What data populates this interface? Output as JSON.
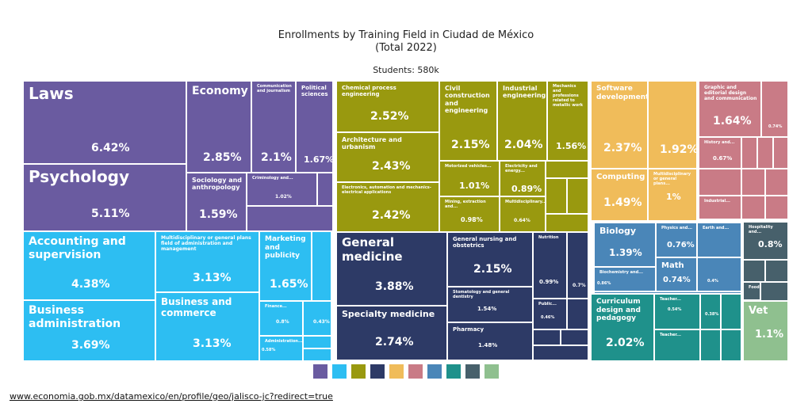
{
  "chart_data": {
    "type": "treemap",
    "title_line1": "Enrollments by Training Field in Ciudad de México",
    "title_line2": "(Total 2022)",
    "subtitle": "Students: 580k",
    "groups": [
      {
        "name": "",
        "color": "#6a5ba0",
        "children": [
          {
            "label": "Laws",
            "value": "6.42%"
          },
          {
            "label": "Psychology",
            "value": "5.11%"
          },
          {
            "label": "Economy",
            "value": "2.85%"
          },
          {
            "label": "Communication and journalism",
            "value": "2.1%"
          },
          {
            "label": "Political sciences",
            "value": "1.67%"
          },
          {
            "label": "Sociology and anthropology",
            "value": "1.59%"
          },
          {
            "label": "Criminology and...",
            "value": "1.02%"
          }
        ]
      },
      {
        "name": "",
        "color": "#2dbef2",
        "children": [
          {
            "label": "Accounting and supervision",
            "value": "4.38%"
          },
          {
            "label": "Business administration",
            "value": "3.69%"
          },
          {
            "label": "Multidisciplinary or general plans field of administration and management",
            "value": "3.13%"
          },
          {
            "label": "Business and commerce",
            "value": "3.13%"
          },
          {
            "label": "Marketing and publicity",
            "value": "1.65%"
          },
          {
            "label": "Finance...",
            "value": "0.8%"
          },
          {
            "label": "",
            "value": "0.43%"
          },
          {
            "label": "Administration...",
            "value": "0.58%"
          }
        ]
      },
      {
        "name": "",
        "color": "#99990f",
        "children": [
          {
            "label": "Chemical process engineering",
            "value": "2.52%"
          },
          {
            "label": "Architecture and urbanism",
            "value": "2.43%"
          },
          {
            "label": "Electronics, automation and mechanics-electrical applications",
            "value": "2.42%"
          },
          {
            "label": "Civil construction and engineering",
            "value": "2.15%"
          },
          {
            "label": "Industrial engineering",
            "value": "2.04%"
          },
          {
            "label": "Mechanics and professions related to metallic work",
            "value": "1.56%"
          },
          {
            "label": "Motorized vehicles...",
            "value": "1.01%"
          },
          {
            "label": "Electricity and energy...",
            "value": "0.89%"
          },
          {
            "label": "Mining, extraction and...",
            "value": "0.98%"
          },
          {
            "label": "Multidisciplinary...",
            "value": "0.64%"
          }
        ]
      },
      {
        "name": "",
        "color": "#2d3a66",
        "children": [
          {
            "label": "General medicine",
            "value": "3.88%"
          },
          {
            "label": "Specialty medicine",
            "value": "2.74%"
          },
          {
            "label": "General nursing and obstetrics",
            "value": "2.15%"
          },
          {
            "label": "Stomatology and general dentistry",
            "value": "1.54%"
          },
          {
            "label": "Pharmacy",
            "value": "1.48%"
          },
          {
            "label": "Nutrition",
            "value": "0.99%"
          },
          {
            "label": "",
            "value": "0.7%"
          },
          {
            "label": "Public...",
            "value": "0.46%"
          }
        ]
      },
      {
        "name": "",
        "color": "#f0bc5a",
        "children": [
          {
            "label": "Software development",
            "value": "2.37%"
          },
          {
            "label": "",
            "value": "1.92%"
          },
          {
            "label": "Computing",
            "value": "1.49%"
          },
          {
            "label": "Multidisciplinary or general plans...",
            "value": "1%"
          }
        ]
      },
      {
        "name": "",
        "color": "#c97b86",
        "children": [
          {
            "label": "Graphic and editorial design and communication",
            "value": "1.64%"
          },
          {
            "label": "",
            "value": "0.74%"
          },
          {
            "label": "History and...",
            "value": "0.67%"
          },
          {
            "label": "Industrial...",
            "value": ""
          }
        ]
      },
      {
        "name": "",
        "color": "#4a86b8",
        "children": [
          {
            "label": "Biology",
            "value": "1.39%"
          },
          {
            "label": "Physics and...",
            "value": "0.76%"
          },
          {
            "label": "Earth and...",
            "value": ""
          },
          {
            "label": "Biochemistry and...",
            "value": "0.86%"
          },
          {
            "label": "Math",
            "value": "0.74%"
          },
          {
            "label": "",
            "value": "0.4%"
          }
        ]
      },
      {
        "name": "",
        "color": "#1f918b",
        "children": [
          {
            "label": "Curriculum design and pedagogy",
            "value": "2.02%"
          },
          {
            "label": "Teacher...",
            "value": "0.54%"
          },
          {
            "label": "",
            "value": "0.38%"
          },
          {
            "label": "Teacher...",
            "value": ""
          }
        ]
      },
      {
        "name": "",
        "color": "#47606b",
        "children": [
          {
            "label": "Hospitality and...",
            "value": "0.8%"
          },
          {
            "label": "Food...",
            "value": ""
          }
        ]
      },
      {
        "name": "",
        "color": "#8fc08f",
        "children": [
          {
            "label": "Vet",
            "value": "1.1%"
          }
        ]
      }
    ]
  },
  "source_link": "www.economia.gob.mx/datamexico/en/profile/geo/jalisco-jc?redirect=true"
}
